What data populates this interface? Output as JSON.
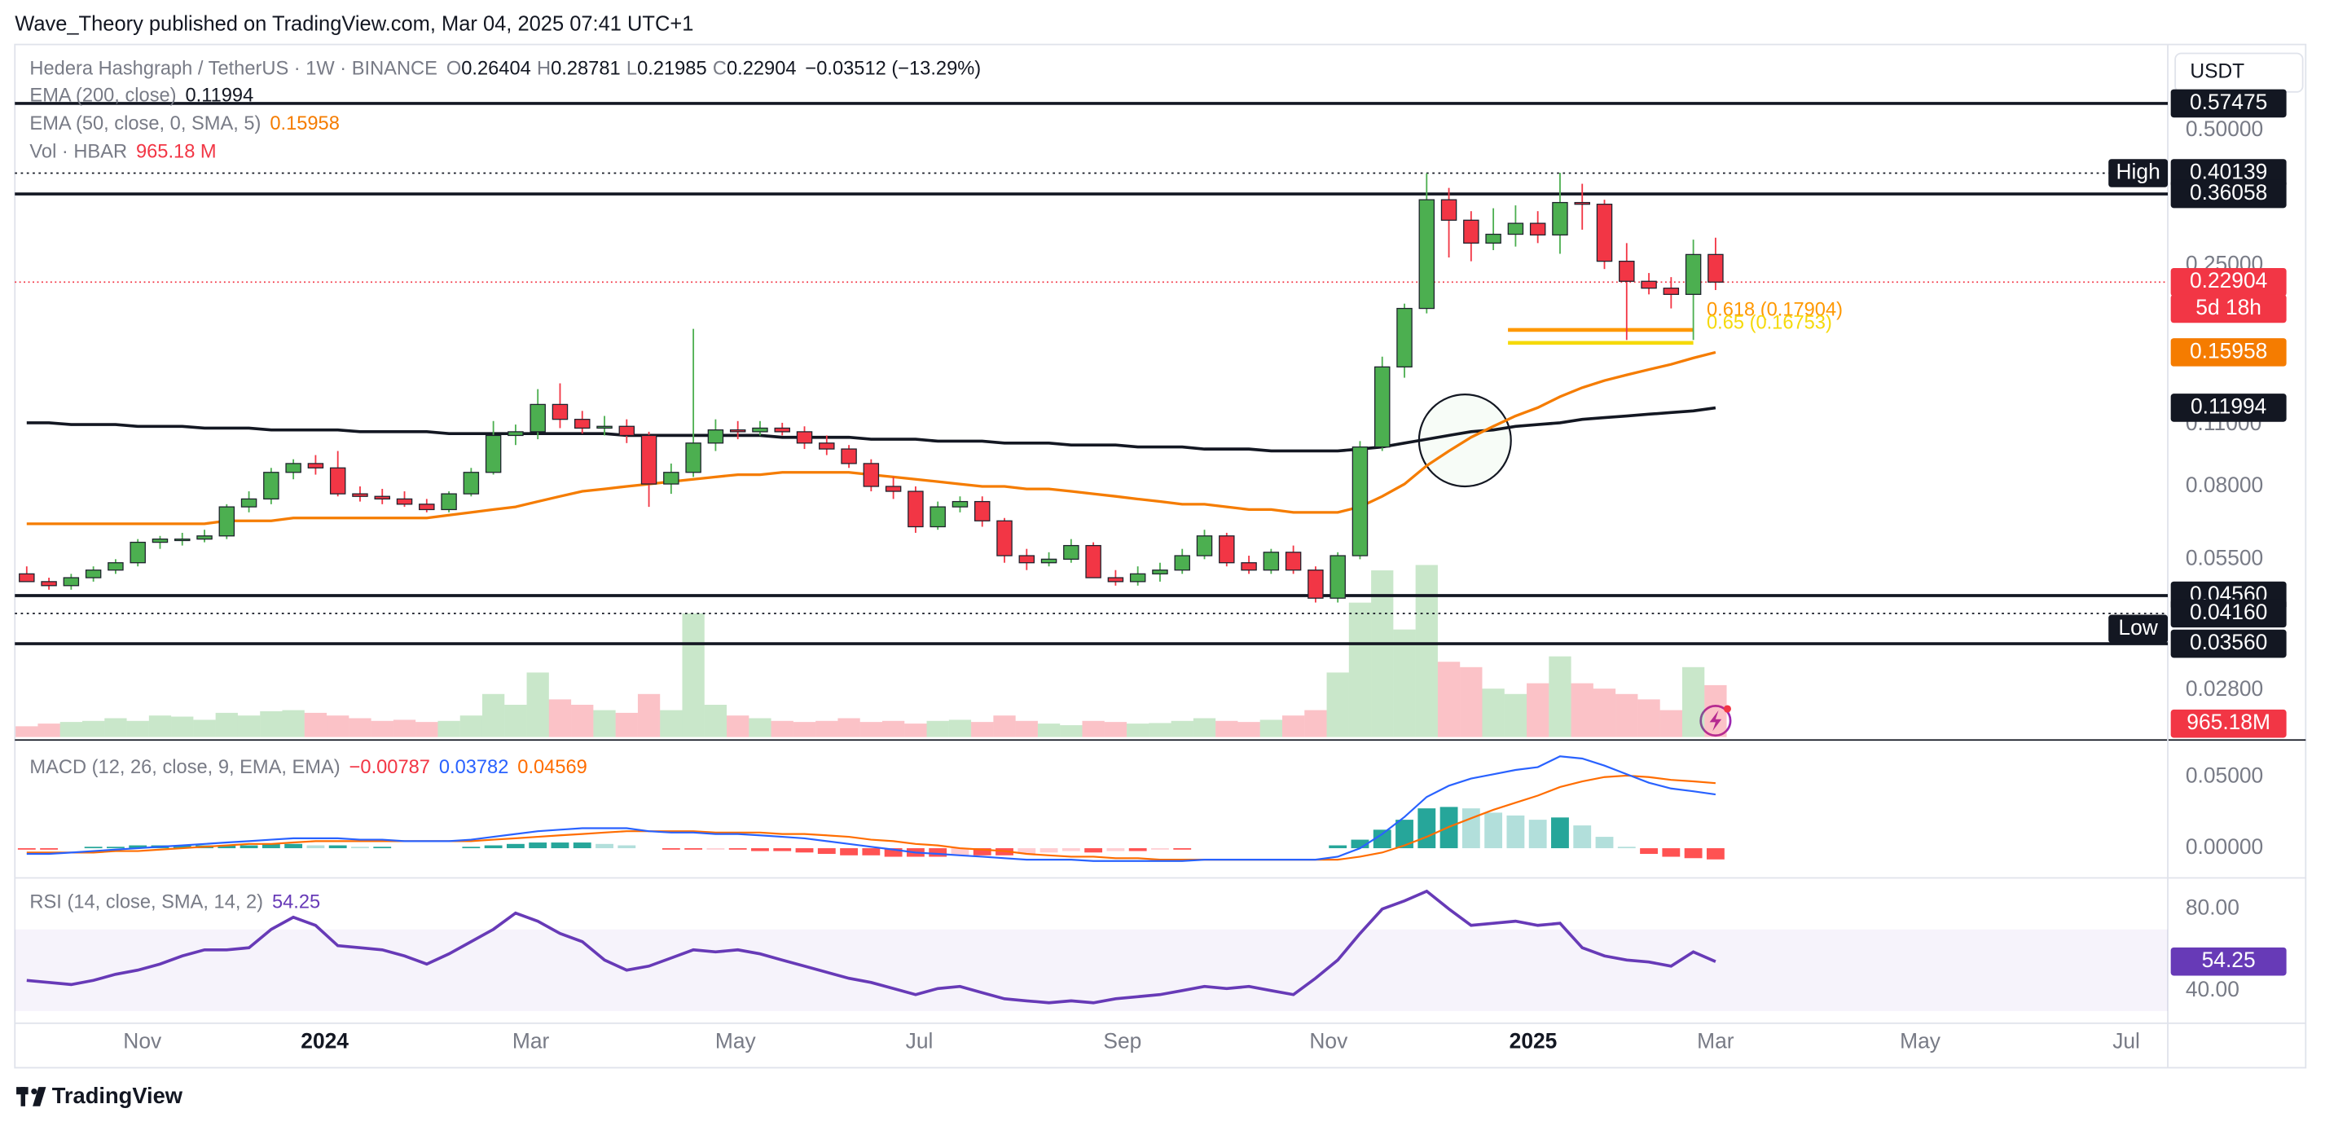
{
  "header": {
    "publisher": "Wave_Theory published on TradingView.com, Mar 04, 2025 07:41 UTC+1",
    "brand": "TradingView",
    "currency": "USDT"
  },
  "chart_data": {
    "type": "candlestick",
    "symbol": "Hedera Hashgraph / TetherUS · 1W · BINANCE",
    "ohlc_letters": [
      "O",
      "H",
      "L",
      "C"
    ],
    "change": "−0.03512 (−13.29%)",
    "log_scale": true,
    "up_color": "#4caf50",
    "down_color": "#f23645",
    "open": [
      0.051,
      0.049,
      0.048,
      0.05,
      0.052,
      0.054,
      0.06,
      0.061,
      0.061,
      0.062,
      0.072,
      0.075,
      0.086,
      0.09,
      0.088,
      0.077,
      0.076,
      0.075,
      0.073,
      0.071,
      0.077,
      0.086,
      0.104,
      0.106,
      0.122,
      0.113,
      0.108,
      0.109,
      0.104,
      0.081,
      0.086,
      0.1,
      0.107,
      0.106,
      0.108,
      0.106,
      0.1,
      0.097,
      0.09,
      0.08,
      0.078,
      0.065,
      0.072,
      0.074,
      0.067,
      0.056,
      0.054,
      0.055,
      0.059,
      0.05,
      0.049,
      0.051,
      0.052,
      0.056,
      0.062,
      0.054,
      0.052,
      0.057,
      0.052,
      0.045,
      0.056,
      0.098,
      0.148,
      0.2,
      0.35,
      0.315,
      0.28,
      0.293,
      0.31,
      0.292,
      0.345,
      0.342,
      0.255,
      0.23,
      0.222,
      0.215,
      0.26404
    ],
    "high": [
      0.053,
      0.05,
      0.051,
      0.053,
      0.055,
      0.061,
      0.062,
      0.063,
      0.064,
      0.073,
      0.078,
      0.088,
      0.092,
      0.094,
      0.096,
      0.08,
      0.079,
      0.078,
      0.075,
      0.078,
      0.088,
      0.112,
      0.11,
      0.132,
      0.136,
      0.118,
      0.115,
      0.113,
      0.106,
      0.09,
      0.18,
      0.113,
      0.112,
      0.112,
      0.111,
      0.109,
      0.104,
      0.099,
      0.092,
      0.084,
      0.08,
      0.074,
      0.076,
      0.076,
      0.068,
      0.058,
      0.057,
      0.061,
      0.06,
      0.052,
      0.053,
      0.054,
      0.058,
      0.064,
      0.063,
      0.056,
      0.058,
      0.059,
      0.053,
      0.057,
      0.101,
      0.156,
      0.205,
      0.401,
      0.372,
      0.33,
      0.335,
      0.34,
      0.33,
      0.402,
      0.38,
      0.35,
      0.28,
      0.24,
      0.235,
      0.285,
      0.28781
    ],
    "low": [
      0.049,
      0.047,
      0.047,
      0.049,
      0.051,
      0.053,
      0.058,
      0.059,
      0.06,
      0.061,
      0.07,
      0.073,
      0.083,
      0.085,
      0.076,
      0.074,
      0.073,
      0.072,
      0.07,
      0.07,
      0.076,
      0.085,
      0.099,
      0.102,
      0.108,
      0.105,
      0.104,
      0.1,
      0.072,
      0.077,
      0.084,
      0.096,
      0.102,
      0.104,
      0.104,
      0.097,
      0.094,
      0.088,
      0.078,
      0.075,
      0.063,
      0.064,
      0.07,
      0.065,
      0.054,
      0.052,
      0.053,
      0.054,
      0.05,
      0.048,
      0.048,
      0.049,
      0.051,
      0.055,
      0.053,
      0.051,
      0.051,
      0.051,
      0.044,
      0.044,
      0.055,
      0.096,
      0.14,
      0.195,
      0.26,
      0.255,
      0.27,
      0.275,
      0.28,
      0.265,
      0.3,
      0.245,
      0.17,
      0.215,
      0.2,
      0.17,
      0.21985
    ],
    "close": [
      0.049,
      0.048,
      0.05,
      0.052,
      0.054,
      0.06,
      0.061,
      0.061,
      0.062,
      0.072,
      0.075,
      0.086,
      0.09,
      0.088,
      0.077,
      0.076,
      0.075,
      0.073,
      0.071,
      0.077,
      0.086,
      0.104,
      0.106,
      0.122,
      0.113,
      0.108,
      0.109,
      0.104,
      0.081,
      0.086,
      0.1,
      0.107,
      0.106,
      0.108,
      0.106,
      0.1,
      0.097,
      0.09,
      0.08,
      0.078,
      0.065,
      0.072,
      0.074,
      0.067,
      0.056,
      0.054,
      0.055,
      0.059,
      0.05,
      0.049,
      0.051,
      0.052,
      0.056,
      0.062,
      0.054,
      0.052,
      0.057,
      0.052,
      0.045,
      0.056,
      0.098,
      0.148,
      0.2,
      0.35,
      0.315,
      0.28,
      0.293,
      0.31,
      0.292,
      0.345,
      0.342,
      0.255,
      0.23,
      0.222,
      0.215,
      0.264,
      0.22904
    ],
    "ylim": [
      0.0245,
      0.68
    ],
    "yticks": [
      {
        "value": 0.5,
        "label": "0.50000"
      },
      {
        "value": 0.25,
        "label": "0.25000"
      },
      {
        "value": 0.11,
        "label": "0.11000"
      },
      {
        "value": 0.08,
        "label": "0.08000"
      },
      {
        "value": 0.055,
        "label": "0.05500"
      },
      {
        "value": 0.028,
        "label": "0.02800"
      }
    ],
    "xticks": [
      "Nov",
      "2024",
      "Mar",
      "May",
      "Jul",
      "Sep",
      "Nov",
      "2025",
      "Mar",
      "May",
      "Jul"
    ],
    "countdown": "5d 18h",
    "series": [
      {
        "name": "EMA (200, close)",
        "color": "#131722",
        "values": [
          0.111,
          0.111,
          0.11,
          0.11,
          0.11,
          0.109,
          0.109,
          0.109,
          0.108,
          0.108,
          0.108,
          0.107,
          0.107,
          0.107,
          0.107,
          0.106,
          0.106,
          0.106,
          0.106,
          0.105,
          0.105,
          0.105,
          0.105,
          0.105,
          0.105,
          0.105,
          0.105,
          0.104,
          0.104,
          0.104,
          0.104,
          0.104,
          0.104,
          0.104,
          0.103,
          0.103,
          0.103,
          0.103,
          0.102,
          0.102,
          0.102,
          0.101,
          0.101,
          0.101,
          0.1,
          0.1,
          0.1,
          0.099,
          0.099,
          0.099,
          0.098,
          0.098,
          0.098,
          0.097,
          0.097,
          0.097,
          0.096,
          0.096,
          0.096,
          0.096,
          0.097,
          0.098,
          0.1,
          0.102,
          0.104,
          0.106,
          0.107,
          0.109,
          0.11,
          0.111,
          0.113,
          0.114,
          0.115,
          0.116,
          0.117,
          0.118,
          0.11994
        ]
      },
      {
        "name": "EMA (50, close, 0, SMA, 5)",
        "color": "#f57c00",
        "values": [
          0.066,
          0.066,
          0.066,
          0.066,
          0.066,
          0.066,
          0.066,
          0.066,
          0.066,
          0.067,
          0.067,
          0.067,
          0.068,
          0.068,
          0.068,
          0.068,
          0.068,
          0.068,
          0.068,
          0.069,
          0.07,
          0.071,
          0.072,
          0.074,
          0.076,
          0.078,
          0.079,
          0.08,
          0.081,
          0.082,
          0.083,
          0.084,
          0.085,
          0.085,
          0.086,
          0.086,
          0.086,
          0.086,
          0.085,
          0.084,
          0.083,
          0.082,
          0.081,
          0.08,
          0.08,
          0.079,
          0.079,
          0.078,
          0.077,
          0.076,
          0.075,
          0.074,
          0.073,
          0.073,
          0.072,
          0.071,
          0.071,
          0.07,
          0.07,
          0.07,
          0.072,
          0.076,
          0.081,
          0.089,
          0.096,
          0.103,
          0.109,
          0.115,
          0.12,
          0.127,
          0.133,
          0.138,
          0.142,
          0.146,
          0.15,
          0.155,
          0.15958
        ]
      }
    ],
    "levels": [
      {
        "value": 0.57475
      },
      {
        "value": 0.40139,
        "name": "High",
        "style": "dotted"
      },
      {
        "value": 0.36058
      },
      {
        "value": 0.0456,
        "label": "0.04560"
      },
      {
        "value": 0.0416,
        "label": "0.04160",
        "style": "dotted"
      },
      {
        "value": 0.0356,
        "name": "Low",
        "label": "0.03560"
      }
    ],
    "fibonacci": [
      {
        "label": "0.618 (0.17904)",
        "value": 0.17904,
        "color": "#ff9800"
      },
      {
        "label": "0.65 (0.16753)",
        "value": 0.16753,
        "color": "#f5d90a"
      }
    ],
    "volume": {
      "name": "Vol · HBAR",
      "legend_label": "965.18 M",
      "axis_label": "965.18M",
      "values": [
        200,
        250,
        280,
        300,
        350,
        300,
        400,
        380,
        320,
        450,
        400,
        480,
        500,
        450,
        400,
        350,
        300,
        320,
        280,
        300,
        400,
        800,
        600,
        1200,
        700,
        600,
        500,
        450,
        800,
        500,
        2300,
        600,
        400,
        350,
        300,
        280,
        300,
        350,
        280,
        300,
        250,
        300,
        320,
        280,
        400,
        300,
        250,
        220,
        300,
        280,
        250,
        260,
        300,
        350,
        300,
        280,
        320,
        400,
        500,
        1200,
        2500,
        3100,
        2000,
        3200,
        1400,
        1300,
        900,
        800,
        1000,
        1500,
        1000,
        900,
        800,
        700,
        500,
        1300,
        965.18
      ]
    },
    "macd": {
      "name": "MACD (12, 26, close, 9, EMA, EMA)",
      "histogram_label": "−0.00787",
      "macd_color": "#2962ff",
      "signal_color": "#ff6d00",
      "hist_colors": [
        "#26a69a",
        "#b2dfdb",
        "#ff5252",
        "#ffcdd2"
      ],
      "ylim": [
        -0.0167,
        0.0698
      ],
      "yticks": [
        {
          "value": 0.05,
          "label": "0.05000"
        },
        {
          "value": 0,
          "label": "0.00000"
        }
      ],
      "macd": [
        -0.004,
        -0.004,
        -0.003,
        -0.002,
        -0.001,
        0.0,
        0.001,
        0.002,
        0.003,
        0.004,
        0.005,
        0.006,
        0.007,
        0.007,
        0.007,
        0.006,
        0.006,
        0.005,
        0.005,
        0.005,
        0.006,
        0.008,
        0.01,
        0.012,
        0.013,
        0.014,
        0.014,
        0.014,
        0.012,
        0.011,
        0.011,
        0.01,
        0.01,
        0.009,
        0.008,
        0.007,
        0.005,
        0.003,
        0.001,
        -0.001,
        -0.003,
        -0.004,
        -0.005,
        -0.006,
        -0.007,
        -0.008,
        -0.008,
        -0.008,
        -0.009,
        -0.009,
        -0.009,
        -0.009,
        -0.009,
        -0.008,
        -0.008,
        -0.008,
        -0.008,
        -0.008,
        -0.008,
        -0.006,
        0.0,
        0.01,
        0.022,
        0.036,
        0.044,
        0.049,
        0.052,
        0.055,
        0.057,
        0.0646,
        0.063,
        0.058,
        0.052,
        0.046,
        0.042,
        0.04,
        0.03782
      ],
      "signal": [
        -0.003,
        -0.003,
        -0.003,
        -0.003,
        -0.002,
        -0.002,
        -0.001,
        0.0,
        0.001,
        0.002,
        0.003,
        0.003,
        0.004,
        0.005,
        0.005,
        0.005,
        0.005,
        0.005,
        0.005,
        0.005,
        0.005,
        0.006,
        0.007,
        0.008,
        0.009,
        0.01,
        0.011,
        0.012,
        0.012,
        0.012,
        0.012,
        0.011,
        0.011,
        0.011,
        0.01,
        0.01,
        0.009,
        0.008,
        0.006,
        0.005,
        0.003,
        0.002,
        0.0,
        -0.001,
        -0.002,
        -0.004,
        -0.005,
        -0.006,
        -0.006,
        -0.007,
        -0.007,
        -0.008,
        -0.008,
        -0.008,
        -0.008,
        -0.008,
        -0.008,
        -0.008,
        -0.008,
        -0.008,
        -0.006,
        -0.003,
        0.002,
        0.008,
        0.015,
        0.021,
        0.027,
        0.032,
        0.037,
        0.043,
        0.047,
        0.05,
        0.051,
        0.05,
        0.048,
        0.047,
        0.04569
      ]
    },
    "rsi": {
      "name": "RSI (14, close, SMA, 14, 2)",
      "color": "#673ab7",
      "band": [
        30,
        70
      ],
      "ylim": [
        24,
        90.9
      ],
      "yticks": [
        {
          "value": 80,
          "label": "80.00"
        },
        {
          "value": 40,
          "label": "40.00"
        }
      ],
      "values": [
        45,
        44,
        43,
        45,
        48,
        50,
        53,
        57,
        60,
        60,
        61,
        70,
        76,
        72,
        62,
        61,
        60,
        57,
        53,
        58,
        64,
        70,
        78,
        74,
        68,
        64,
        55,
        50,
        52,
        56,
        60,
        59,
        60,
        58,
        55,
        52,
        49,
        46,
        44,
        41,
        38,
        41,
        42,
        39,
        36,
        35,
        34,
        35,
        34,
        36,
        37,
        38,
        40,
        42,
        41,
        42,
        40,
        38,
        46,
        55,
        68,
        80,
        84,
        88.7,
        80,
        72,
        73,
        74,
        72,
        73,
        61,
        57,
        55,
        54,
        52,
        59,
        54.25
      ]
    }
  }
}
